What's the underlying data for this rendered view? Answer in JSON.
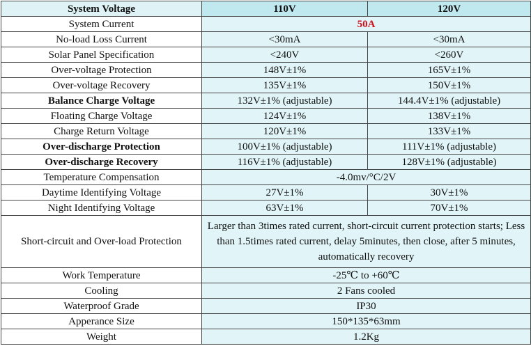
{
  "table": {
    "header": [
      "System Voltage",
      "110V",
      "120V"
    ],
    "rows": [
      [
        "System Current",
        "50A"
      ],
      [
        "No-load Loss Current",
        "<30mA",
        "<30mA"
      ],
      [
        "Solar Panel Specification",
        "<240V",
        "<260V"
      ],
      [
        "Over-voltage Protection",
        "148V±1%",
        "165V±1%"
      ],
      [
        "Over-voltage Recovery",
        "135V±1%",
        "150V±1%"
      ],
      [
        "Balance Charge Voltage",
        "132V±1% (adjustable)",
        "144.4V±1% (adjustable)"
      ],
      [
        "Floating Charge Voltage",
        "124V±1%",
        "138V±1%"
      ],
      [
        "Charge Return Voltage",
        "120V±1%",
        "133V±1%"
      ],
      [
        "Over-discharge Protection",
        "100V±1% (adjustable)",
        "111V±1% (adjustable)"
      ],
      [
        "Over-discharge Recovery",
        "116V±1% (adjustable)",
        "128V±1% (adjustable)"
      ],
      [
        "Temperature Compensation",
        "-4.0mv/°C/2V"
      ],
      [
        "Daytime Identifying Voltage",
        "27V±1%",
        "30V±1%"
      ],
      [
        "Night Identifying Voltage",
        "63V±1%",
        "70V±1%"
      ],
      [
        "Short-circuit and Over-load Protection",
        "Larger than 3times rated current, short-circuit current protection starts; Less than 1.5times rated current, delay 5minutes, then close, after 5 minutes, automatically recovery"
      ],
      [
        "Work Temperature",
        "-25℃ to +60℃"
      ],
      [
        "Cooling",
        "2 Fans cooled"
      ],
      [
        "Waterproof Grade",
        "IP30"
      ],
      [
        "Apperance Size",
        "150*135*63mm"
      ],
      [
        "Weight",
        "1.2Kg"
      ]
    ]
  }
}
